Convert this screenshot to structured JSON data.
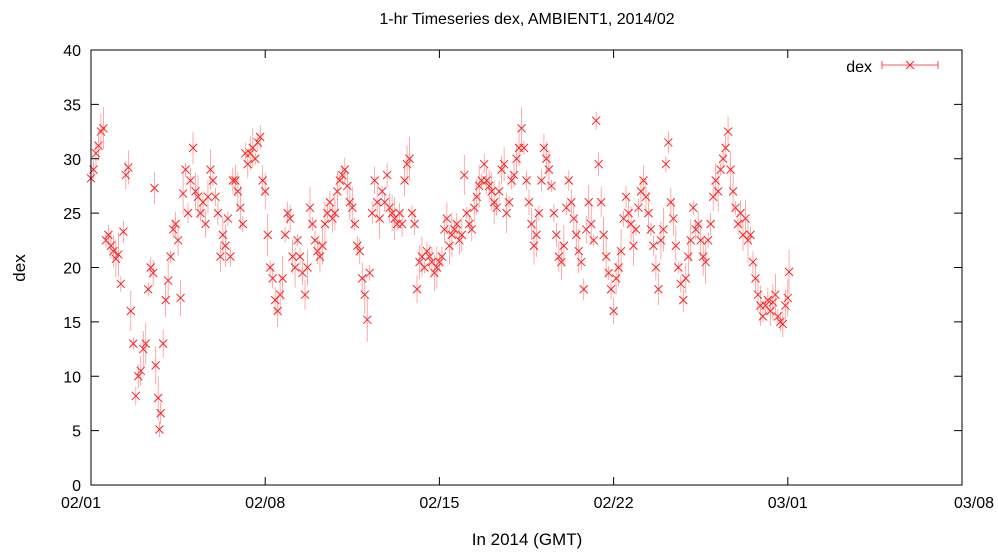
{
  "chart_data": {
    "type": "scatter",
    "title": "1-hr Timeseries dex, AMBIENT1, 2014/02",
    "xlabel": "In 2014 (GMT)",
    "ylabel": "dex",
    "x_ticks": [
      "02/01",
      "02/08",
      "02/15",
      "02/22",
      "03/01",
      "03/08"
    ],
    "y_ticks": [
      "0",
      "5",
      "10",
      "15",
      "20",
      "25",
      "30",
      "35",
      "40"
    ],
    "xlim_days": [
      0,
      35
    ],
    "ylim": [
      0,
      40
    ],
    "grid": false,
    "legend_position": "top-right",
    "series": [
      {
        "name": "dex",
        "color": "#ff2020",
        "marker": "x-with-errorbars",
        "points": [
          [
            0.0,
            28.2
          ],
          [
            0.1,
            29.0
          ],
          [
            0.2,
            30.5
          ],
          [
            0.3,
            31.2
          ],
          [
            0.4,
            32.5
          ],
          [
            0.5,
            32.8
          ],
          [
            0.6,
            22.5
          ],
          [
            0.7,
            23.0
          ],
          [
            0.8,
            22.0
          ],
          [
            0.9,
            21.5
          ],
          [
            1.0,
            20.8
          ],
          [
            1.1,
            21.2
          ],
          [
            1.2,
            18.5
          ],
          [
            1.3,
            23.3
          ],
          [
            1.4,
            28.5
          ],
          [
            1.5,
            29.2
          ],
          [
            1.6,
            16.0
          ],
          [
            1.7,
            13.0
          ],
          [
            1.8,
            8.2
          ],
          [
            1.9,
            10.0
          ],
          [
            2.0,
            10.5
          ],
          [
            2.1,
            12.5
          ],
          [
            2.2,
            13.0
          ],
          [
            2.3,
            18.0
          ],
          [
            2.4,
            20.0
          ],
          [
            2.5,
            19.5
          ],
          [
            2.55,
            27.3
          ],
          [
            2.6,
            11.0
          ],
          [
            2.7,
            8.0
          ],
          [
            2.75,
            5.1
          ],
          [
            2.8,
            6.6
          ],
          [
            2.9,
            13.0
          ],
          [
            3.0,
            17.0
          ],
          [
            3.1,
            18.8
          ],
          [
            3.2,
            21.0
          ],
          [
            3.3,
            23.5
          ],
          [
            3.4,
            24.0
          ],
          [
            3.5,
            22.5
          ],
          [
            3.6,
            17.2
          ],
          [
            3.7,
            26.8
          ],
          [
            3.8,
            29.0
          ],
          [
            3.9,
            25.0
          ],
          [
            4.0,
            28.0
          ],
          [
            4.1,
            31.0
          ],
          [
            4.2,
            27.0
          ],
          [
            4.3,
            26.5
          ],
          [
            4.4,
            25.0
          ],
          [
            4.5,
            26.0
          ],
          [
            4.6,
            24.0
          ],
          [
            4.7,
            26.5
          ],
          [
            4.8,
            29.0
          ],
          [
            4.9,
            28.0
          ],
          [
            5.0,
            26.5
          ],
          [
            5.1,
            25.0
          ],
          [
            5.2,
            21.0
          ],
          [
            5.3,
            23.0
          ],
          [
            5.4,
            22.0
          ],
          [
            5.5,
            24.5
          ],
          [
            5.6,
            21.0
          ],
          [
            5.7,
            28.0
          ],
          [
            5.8,
            28.0
          ],
          [
            5.9,
            27.0
          ],
          [
            6.0,
            25.5
          ],
          [
            6.1,
            24.0
          ],
          [
            6.2,
            30.5
          ],
          [
            6.3,
            29.5
          ],
          [
            6.4,
            30.5
          ],
          [
            6.5,
            31.0
          ],
          [
            6.6,
            30.0
          ],
          [
            6.7,
            31.5
          ],
          [
            6.8,
            32.0
          ],
          [
            6.9,
            28.0
          ],
          [
            7.0,
            27.0
          ],
          [
            7.1,
            23.0
          ],
          [
            7.2,
            20.0
          ],
          [
            7.3,
            19.0
          ],
          [
            7.4,
            17.0
          ],
          [
            7.5,
            16.0
          ],
          [
            7.6,
            17.5
          ],
          [
            7.7,
            19.0
          ],
          [
            7.8,
            23.0
          ],
          [
            7.9,
            25.0
          ],
          [
            8.0,
            24.5
          ],
          [
            8.1,
            21.0
          ],
          [
            8.2,
            20.0
          ],
          [
            8.3,
            22.5
          ],
          [
            8.4,
            21.0
          ],
          [
            8.5,
            19.5
          ],
          [
            8.6,
            17.5
          ],
          [
            8.7,
            20.0
          ],
          [
            8.8,
            25.5
          ],
          [
            8.9,
            24.0
          ],
          [
            9.0,
            22.5
          ],
          [
            9.1,
            21.5
          ],
          [
            9.2,
            21.0
          ],
          [
            9.3,
            22.0
          ],
          [
            9.4,
            24.0
          ],
          [
            9.5,
            25.0
          ],
          [
            9.6,
            26.0
          ],
          [
            9.7,
            24.5
          ],
          [
            9.8,
            25.0
          ],
          [
            9.9,
            27.0
          ],
          [
            10.0,
            28.0
          ],
          [
            10.1,
            28.5
          ],
          [
            10.2,
            29.0
          ],
          [
            10.3,
            27.5
          ],
          [
            10.4,
            26.0
          ],
          [
            10.5,
            25.5
          ],
          [
            10.6,
            24.0
          ],
          [
            10.7,
            22.0
          ],
          [
            10.8,
            21.5
          ],
          [
            10.9,
            19.0
          ],
          [
            11.0,
            17.5
          ],
          [
            11.1,
            15.2
          ],
          [
            11.2,
            19.5
          ],
          [
            11.3,
            25.0
          ],
          [
            11.4,
            28.0
          ],
          [
            11.5,
            26.0
          ],
          [
            11.6,
            24.5
          ],
          [
            11.7,
            27.0
          ],
          [
            11.8,
            26.0
          ],
          [
            11.9,
            28.5
          ],
          [
            12.0,
            25.5
          ],
          [
            12.1,
            25.0
          ],
          [
            12.2,
            24.5
          ],
          [
            12.3,
            24.0
          ],
          [
            12.4,
            25.0
          ],
          [
            12.5,
            24.0
          ],
          [
            12.6,
            28.0
          ],
          [
            12.7,
            29.5
          ],
          [
            12.8,
            30.0
          ],
          [
            12.9,
            25.0
          ],
          [
            13.0,
            24.0
          ],
          [
            13.1,
            18.0
          ],
          [
            13.2,
            20.5
          ],
          [
            13.3,
            21.0
          ],
          [
            13.4,
            20.0
          ],
          [
            13.5,
            21.5
          ],
          [
            13.6,
            21.0
          ],
          [
            13.7,
            20.5
          ],
          [
            13.8,
            19.5
          ],
          [
            13.9,
            20.0
          ],
          [
            14.0,
            20.5
          ],
          [
            14.1,
            21.0
          ],
          [
            14.2,
            23.5
          ],
          [
            14.3,
            24.5
          ],
          [
            14.4,
            22.0
          ],
          [
            14.5,
            23.0
          ],
          [
            14.6,
            23.5
          ],
          [
            14.7,
            24.0
          ],
          [
            14.8,
            22.5
          ],
          [
            14.9,
            23.0
          ],
          [
            15.0,
            28.5
          ],
          [
            15.1,
            25.0
          ],
          [
            15.2,
            24.0
          ],
          [
            15.3,
            23.5
          ],
          [
            15.4,
            25.5
          ],
          [
            15.5,
            26.5
          ],
          [
            15.6,
            27.5
          ],
          [
            15.7,
            28.0
          ],
          [
            15.8,
            29.5
          ],
          [
            15.9,
            28.0
          ],
          [
            16.0,
            27.5
          ],
          [
            16.1,
            27.0
          ],
          [
            16.2,
            26.0
          ],
          [
            16.3,
            25.5
          ],
          [
            16.4,
            27.0
          ],
          [
            16.5,
            29.0
          ],
          [
            16.6,
            29.5
          ],
          [
            16.7,
            25.0
          ],
          [
            16.8,
            26.0
          ],
          [
            16.9,
            28.0
          ],
          [
            17.0,
            28.5
          ],
          [
            17.1,
            30.0
          ],
          [
            17.2,
            31.0
          ],
          [
            17.3,
            32.8
          ],
          [
            17.4,
            31.0
          ],
          [
            17.5,
            28.0
          ],
          [
            17.6,
            26.0
          ],
          [
            17.7,
            24.0
          ],
          [
            17.8,
            22.0
          ],
          [
            17.9,
            23.0
          ],
          [
            18.0,
            25.0
          ],
          [
            18.1,
            28.0
          ],
          [
            18.2,
            31.0
          ],
          [
            18.3,
            30.0
          ],
          [
            18.4,
            29.0
          ],
          [
            18.5,
            27.5
          ],
          [
            18.6,
            25.0
          ],
          [
            18.7,
            23.0
          ],
          [
            18.8,
            21.0
          ],
          [
            18.9,
            20.5
          ],
          [
            19.0,
            22.0
          ],
          [
            19.1,
            25.5
          ],
          [
            19.2,
            28.0
          ],
          [
            19.3,
            26.0
          ],
          [
            19.4,
            24.5
          ],
          [
            19.5,
            23.0
          ],
          [
            19.6,
            21.5
          ],
          [
            19.7,
            20.5
          ],
          [
            19.8,
            18.0
          ],
          [
            19.9,
            23.5
          ],
          [
            20.0,
            26.0
          ],
          [
            20.1,
            24.0
          ],
          [
            20.2,
            22.5
          ],
          [
            20.3,
            33.5
          ],
          [
            20.4,
            29.5
          ],
          [
            20.5,
            26.0
          ],
          [
            20.6,
            23.0
          ],
          [
            20.7,
            21.0
          ],
          [
            20.8,
            19.5
          ],
          [
            20.9,
            18.0
          ],
          [
            21.0,
            16.0
          ],
          [
            21.1,
            19.0
          ],
          [
            21.2,
            20.0
          ],
          [
            21.3,
            21.5
          ],
          [
            21.4,
            24.5
          ],
          [
            21.5,
            26.5
          ],
          [
            21.6,
            25.0
          ],
          [
            21.7,
            24.0
          ],
          [
            21.8,
            22.0
          ],
          [
            21.9,
            23.5
          ],
          [
            22.0,
            25.5
          ],
          [
            22.1,
            27.0
          ],
          [
            22.2,
            28.0
          ],
          [
            22.3,
            26.5
          ],
          [
            22.4,
            25.0
          ],
          [
            22.5,
            23.5
          ],
          [
            22.6,
            22.0
          ],
          [
            22.7,
            20.0
          ],
          [
            22.8,
            18.0
          ],
          [
            22.9,
            22.5
          ],
          [
            23.0,
            23.5
          ],
          [
            23.1,
            29.5
          ],
          [
            23.2,
            31.5
          ],
          [
            23.3,
            26.0
          ],
          [
            23.4,
            24.5
          ],
          [
            23.5,
            22.0
          ],
          [
            23.6,
            20.0
          ],
          [
            23.7,
            18.5
          ],
          [
            23.8,
            17.0
          ],
          [
            23.9,
            19.0
          ],
          [
            24.0,
            21.0
          ],
          [
            24.1,
            22.5
          ],
          [
            24.2,
            25.5
          ],
          [
            24.3,
            23.5
          ],
          [
            24.4,
            24.0
          ],
          [
            24.5,
            22.5
          ],
          [
            24.6,
            21.0
          ],
          [
            24.7,
            20.5
          ],
          [
            24.8,
            22.5
          ],
          [
            24.9,
            24.0
          ],
          [
            25.0,
            26.5
          ],
          [
            25.1,
            28.0
          ],
          [
            25.2,
            27.0
          ],
          [
            25.3,
            29.0
          ],
          [
            25.4,
            30.0
          ],
          [
            25.5,
            31.0
          ],
          [
            25.6,
            32.5
          ],
          [
            25.7,
            29.0
          ],
          [
            25.8,
            27.0
          ],
          [
            25.9,
            25.5
          ],
          [
            26.0,
            24.0
          ],
          [
            26.1,
            25.0
          ],
          [
            26.2,
            23.0
          ],
          [
            26.3,
            24.5
          ],
          [
            26.4,
            22.5
          ],
          [
            26.5,
            23.0
          ],
          [
            26.6,
            20.5
          ],
          [
            26.7,
            19.0
          ],
          [
            26.8,
            17.5
          ],
          [
            26.9,
            16.5
          ],
          [
            27.0,
            15.5
          ],
          [
            27.1,
            16.5
          ],
          [
            27.2,
            17.0
          ],
          [
            27.3,
            16.0
          ],
          [
            27.4,
            16.8
          ],
          [
            27.5,
            17.5
          ],
          [
            27.6,
            15.5
          ],
          [
            27.7,
            15.0
          ],
          [
            27.8,
            14.8
          ],
          [
            27.9,
            16.5
          ],
          [
            28.0,
            17.2
          ],
          [
            28.05,
            19.6
          ]
        ]
      }
    ]
  }
}
